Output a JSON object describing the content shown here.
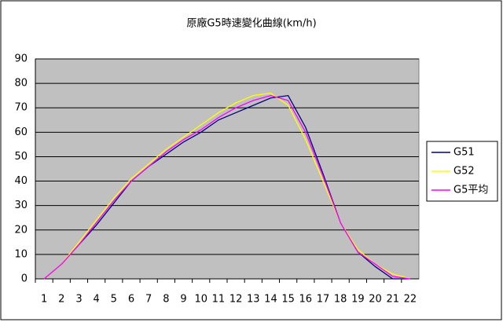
{
  "chart_data": {
    "type": "line",
    "title": "原廠G5時速變化曲線(km/h)",
    "categories": [
      "1",
      "2",
      "3",
      "4",
      "5",
      "6",
      "7",
      "8",
      "9",
      "10",
      "11",
      "12",
      "13",
      "14",
      "15",
      "16",
      "17",
      "18",
      "19",
      "20",
      "21",
      "22"
    ],
    "series": [
      {
        "name": "G51",
        "color": "#000080",
        "values": [
          0,
          6,
          14,
          22,
          31,
          40,
          46,
          51,
          56,
          60,
          65,
          68,
          71,
          74,
          75,
          62,
          43,
          23,
          11,
          5,
          0,
          0
        ]
      },
      {
        "name": "G52",
        "color": "#ffff00",
        "values": [
          0,
          6,
          15,
          24,
          33,
          41,
          47,
          53,
          58,
          63,
          68,
          72,
          75,
          76,
          71,
          57,
          40,
          23,
          12,
          6,
          2,
          0
        ]
      },
      {
        "name": "G5平均",
        "color": "#ff00ff",
        "values": [
          0,
          6,
          14,
          23,
          32,
          40,
          46,
          52,
          57,
          61,
          66,
          70,
          73,
          75,
          73,
          60,
          42,
          23,
          11,
          6,
          1,
          0
        ]
      }
    ],
    "ylim": [
      0,
      90
    ],
    "yticks": [
      0,
      10,
      20,
      30,
      40,
      50,
      60,
      70,
      80,
      90
    ],
    "grid": true,
    "legend": "right"
  }
}
